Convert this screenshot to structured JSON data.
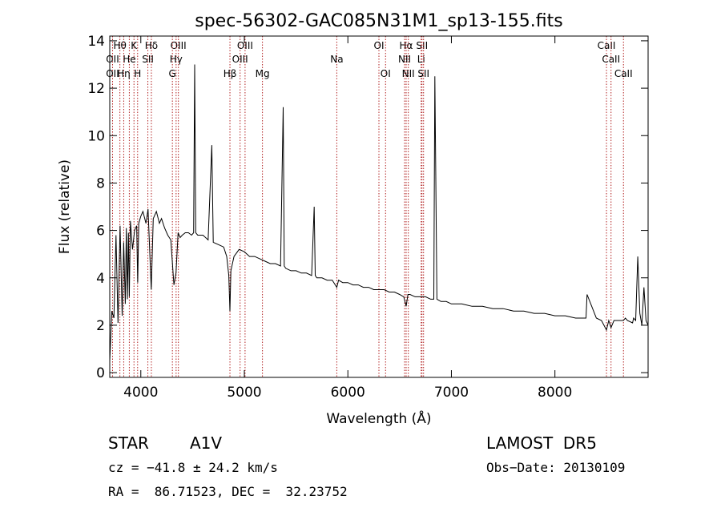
{
  "chart_data": {
    "type": "line",
    "title": "spec-56302-GAC085N31M1_sp13-155.fits",
    "xlabel": "Wavelength (Å)",
    "ylabel": "Flux (relative)",
    "xlim": [
      3700,
      8900
    ],
    "ylim": [
      -0.2,
      14.2
    ],
    "x_ticks": [
      4000,
      5000,
      6000,
      7000,
      8000
    ],
    "y_ticks": [
      0,
      2,
      4,
      6,
      8,
      10,
      12,
      14
    ],
    "grid": false,
    "series": [
      {
        "x": [
          3700,
          3720,
          3740,
          3760,
          3780,
          3800,
          3820,
          3835,
          3850,
          3860,
          3870,
          3880,
          3889,
          3900,
          3920,
          3940,
          3960,
          3970,
          3980,
          4000,
          4020,
          4050,
          4070,
          4101,
          4120,
          4150,
          4180,
          4200,
          4230,
          4260,
          4290,
          4320,
          4340,
          4360,
          4380,
          4400,
          4430,
          4460,
          4490,
          4510,
          4520,
          4530,
          4550,
          4600,
          4650,
          4686,
          4700,
          4750,
          4800,
          4830,
          4850,
          4861,
          4870,
          4900,
          4950,
          5000,
          5050,
          5100,
          5150,
          5200,
          5250,
          5300,
          5350,
          5375,
          5385,
          5400,
          5450,
          5500,
          5550,
          5600,
          5650,
          5675,
          5685,
          5700,
          5750,
          5800,
          5850,
          5893,
          5910,
          5950,
          6000,
          6050,
          6100,
          6150,
          6200,
          6250,
          6300,
          6350,
          6400,
          6450,
          6500,
          6540,
          6563,
          6580,
          6600,
          6650,
          6700,
          6750,
          6800,
          6830,
          6840,
          6860,
          6900,
          6950,
          7000,
          7100,
          7200,
          7300,
          7400,
          7500,
          7600,
          7700,
          7800,
          7900,
          8000,
          8100,
          8200,
          8300,
          8310,
          8400,
          8450,
          8498,
          8520,
          8542,
          8570,
          8600,
          8662,
          8680,
          8700,
          8750,
          8760,
          8780,
          8800,
          8820,
          8840,
          8860,
          8880,
          8900
        ],
        "y": [
          0.5,
          2.6,
          2.3,
          5.8,
          2.1,
          6.2,
          2.4,
          5.5,
          2.9,
          6.1,
          3.1,
          5.9,
          3.2,
          6.4,
          5.2,
          6.0,
          6.2,
          3.8,
          6.3,
          6.6,
          6.8,
          6.3,
          6.9,
          3.5,
          6.5,
          6.8,
          6.3,
          6.5,
          6.1,
          5.8,
          5.6,
          3.7,
          4.2,
          5.9,
          5.7,
          5.8,
          5.9,
          5.9,
          5.8,
          5.9,
          13.0,
          5.9,
          5.8,
          5.8,
          5.6,
          9.6,
          5.5,
          5.4,
          5.3,
          4.9,
          4.1,
          2.6,
          4.3,
          4.9,
          5.2,
          5.1,
          4.9,
          4.9,
          4.8,
          4.7,
          4.6,
          4.6,
          4.5,
          11.2,
          4.5,
          4.4,
          4.3,
          4.3,
          4.2,
          4.2,
          4.1,
          7.0,
          4.1,
          4.0,
          4.0,
          3.9,
          3.9,
          3.6,
          3.9,
          3.8,
          3.8,
          3.7,
          3.7,
          3.6,
          3.6,
          3.5,
          3.5,
          3.5,
          3.4,
          3.4,
          3.3,
          3.2,
          2.8,
          3.3,
          3.3,
          3.2,
          3.2,
          3.2,
          3.1,
          3.1,
          12.5,
          3.1,
          3.0,
          3.0,
          2.9,
          2.9,
          2.8,
          2.8,
          2.7,
          2.7,
          2.6,
          2.6,
          2.5,
          2.5,
          2.4,
          2.4,
          2.3,
          2.3,
          3.3,
          2.3,
          2.2,
          1.8,
          2.2,
          1.9,
          2.2,
          2.2,
          2.2,
          2.3,
          2.2,
          2.1,
          2.3,
          2.2,
          4.9,
          2.5,
          2.0,
          3.6,
          2.2,
          2.0
        ]
      }
    ],
    "line_markers": [
      {
        "label": "Hθ",
        "x": 3798,
        "row": 1
      },
      {
        "label": "K",
        "x": 3934,
        "row": 1
      },
      {
        "label": "Hδ",
        "x": 4102,
        "row": 1
      },
      {
        "label": "OIII",
        "x": 4363,
        "row": 1
      },
      {
        "label": "OIII",
        "x": 4959,
        "row": 2
      },
      {
        "label": "OIII",
        "x": 5007,
        "row": 1
      },
      {
        "label": "OII",
        "x": 3727,
        "row": 2
      },
      {
        "label": "He",
        "x": 3889,
        "row": 2
      },
      {
        "label": "SII",
        "x": 4068,
        "row": 2
      },
      {
        "label": "Hγ",
        "x": 4341,
        "row": 2
      },
      {
        "label": "OII",
        "x": 3727,
        "row": 3
      },
      {
        "label": "Hη",
        "x": 3835,
        "row": 3
      },
      {
        "label": "H",
        "x": 3969,
        "row": 3
      },
      {
        "label": "G",
        "x": 4305,
        "row": 3
      },
      {
        "label": "Hβ",
        "x": 4861,
        "row": 3
      },
      {
        "label": "Mg",
        "x": 5175,
        "row": 3
      },
      {
        "label": "Na",
        "x": 5893,
        "row": 2
      },
      {
        "label": "OI",
        "x": 6300,
        "row": 1
      },
      {
        "label": "OI",
        "x": 6364,
        "row": 3
      },
      {
        "label": "Hα",
        "x": 6563,
        "row": 1
      },
      {
        "label": "SII",
        "x": 6716,
        "row": 1
      },
      {
        "label": "NII",
        "x": 6548,
        "row": 2
      },
      {
        "label": "Li",
        "x": 6708,
        "row": 2
      },
      {
        "label": "NII",
        "x": 6584,
        "row": 3
      },
      {
        "label": "SII",
        "x": 6731,
        "row": 3
      },
      {
        "label": "CaII",
        "x": 8498,
        "row": 1
      },
      {
        "label": "CaII",
        "x": 8542,
        "row": 2
      },
      {
        "label": "CaII",
        "x": 8662,
        "row": 3
      }
    ],
    "marker_color": "#b22222"
  },
  "info": {
    "object_class": "STAR",
    "subclass": "A1V",
    "survey": "LAMOST  DR5",
    "cz": "cz = −41.8 ± 24.2 km/s",
    "obs_date": "Obs−Date: 20130109",
    "coords": "RA =  86.71523, DEC =  32.23752"
  }
}
